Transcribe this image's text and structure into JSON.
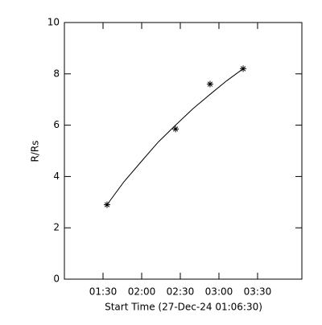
{
  "chart_data": {
    "type": "line",
    "x_label": "Start Time (27-Dec-24 01:06:30)",
    "y_label": "R/Rs",
    "xlim": [
      60,
      244.4
    ],
    "xticks": [
      {
        "value": 90,
        "label": "01:30"
      },
      {
        "value": 120,
        "label": "02:00"
      },
      {
        "value": 150,
        "label": "02:30"
      },
      {
        "value": 180,
        "label": "03:00"
      },
      {
        "value": 210,
        "label": "03:30"
      }
    ],
    "ylim": [
      0,
      10
    ],
    "yticks": [
      0,
      2,
      4,
      6,
      8,
      10
    ],
    "color": "#000000",
    "series": [
      {
        "marker": "asterisk",
        "x": [
          93.1,
          146.3,
          173.1,
          198.8
        ],
        "values": [
          2.9,
          5.85,
          7.6,
          8.2
        ]
      },
      {
        "marker": "none",
        "x": [
          93.1,
          106,
          120,
          133,
          146.3,
          160,
          173.1,
          186,
          198.8
        ],
        "values": [
          2.9,
          3.78,
          4.6,
          5.35,
          6.0,
          6.65,
          7.2,
          7.73,
          8.2
        ]
      }
    ]
  }
}
